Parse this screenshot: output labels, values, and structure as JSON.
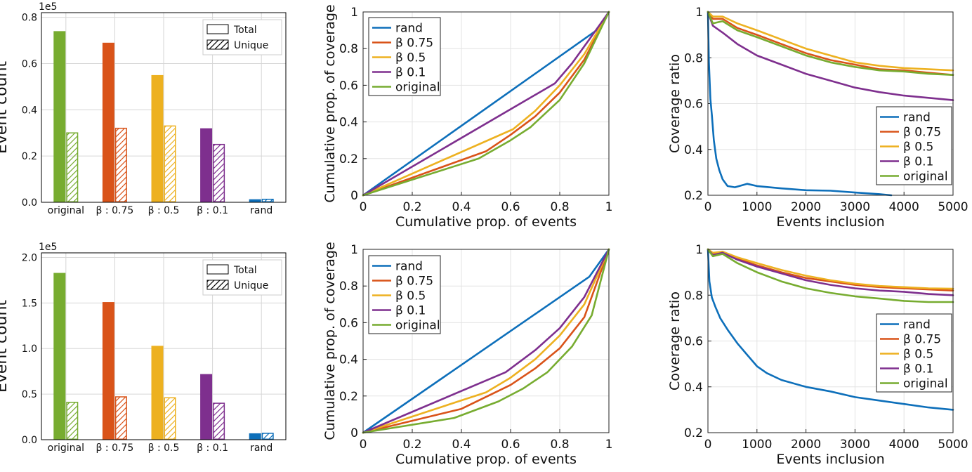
{
  "colors": {
    "rand": "#0d6fba",
    "beta075": "#d95319",
    "beta05": "#edb120",
    "beta01": "#7e2f8e",
    "original": "#77ac30"
  },
  "chart_data": [
    {
      "id": "bar_top",
      "type": "bar",
      "categories": [
        "original",
        "β : 0.75",
        "β : 0.5",
        "β : 0.1",
        "rand"
      ],
      "series": [
        {
          "name": "Total",
          "values": [
            0.74,
            0.69,
            0.55,
            0.32,
            0.013
          ]
        },
        {
          "name": "Unique",
          "values": [
            0.3,
            0.32,
            0.33,
            0.25,
            0.013
          ]
        }
      ],
      "bar_colors": [
        "#77ac30",
        "#d95319",
        "#edb120",
        "#7e2f8e",
        "#0d6fba"
      ],
      "ylabel": "Event count",
      "exponent_label": "1e5",
      "ylim": [
        0,
        0.82
      ],
      "yticks": [
        0.0,
        0.2,
        0.4,
        0.6,
        0.8
      ],
      "ytick_labels": [
        "0.0",
        "0.2",
        "0.4",
        "0.6",
        "0.8"
      ],
      "legend": [
        "Total",
        "Unique"
      ],
      "legend_position": "top-right",
      "grid": true
    },
    {
      "id": "lorenz_top",
      "type": "line",
      "xlabel": "Cumulative prop. of events",
      "ylabel": "Cumulative prop. of coverage",
      "xlim": [
        0,
        1
      ],
      "ylim": [
        0,
        1
      ],
      "xticks": [
        0,
        0.2,
        0.4,
        0.6,
        0.8,
        1
      ],
      "xtick_labels": [
        "0",
        "0.2",
        "0.4",
        "0.6",
        "0.8",
        "1"
      ],
      "yticks": [
        0,
        0.2,
        0.4,
        0.6,
        0.8,
        1
      ],
      "ytick_labels": [
        "0",
        "0.2",
        "0.4",
        "0.6",
        "0.8",
        "1"
      ],
      "legend_position": "top-left",
      "grid": true,
      "series": [
        {
          "name": "rand",
          "x": [
            0,
            0.95,
            1
          ],
          "y": [
            0,
            0.9,
            1
          ]
        },
        {
          "name": "β 0.75",
          "x": [
            0,
            0.5,
            0.6,
            0.7,
            0.8,
            0.9,
            1
          ],
          "y": [
            0,
            0.24,
            0.33,
            0.43,
            0.56,
            0.74,
            1
          ]
        },
        {
          "name": "β 0.5",
          "x": [
            0,
            0.61,
            0.7,
            0.8,
            0.9,
            1
          ],
          "y": [
            0,
            0.36,
            0.46,
            0.6,
            0.77,
            1
          ]
        },
        {
          "name": "β 0.1",
          "x": [
            0,
            0.78,
            0.85,
            0.92,
            1
          ],
          "y": [
            0,
            0.61,
            0.72,
            0.85,
            1
          ]
        },
        {
          "name": "original",
          "x": [
            0,
            0.47,
            0.6,
            0.68,
            0.8,
            0.9,
            1
          ],
          "y": [
            0,
            0.2,
            0.3,
            0.37,
            0.52,
            0.72,
            1
          ]
        }
      ]
    },
    {
      "id": "ratio_top",
      "type": "line",
      "xlabel": "Events inclusion",
      "ylabel": "Coverage ratio",
      "xlim": [
        0,
        5000
      ],
      "ylim": [
        0.2,
        1
      ],
      "xticks": [
        0,
        1000,
        2000,
        3000,
        4000,
        5000
      ],
      "xtick_labels": [
        "0",
        "1000",
        "2000",
        "3000",
        "4000",
        "5000"
      ],
      "yticks": [
        0.2,
        0.4,
        0.6,
        0.8,
        1
      ],
      "ytick_labels": [
        "0.2",
        "0.4",
        "0.6",
        "0.8",
        "1"
      ],
      "legend_position": "right",
      "grid": true,
      "series": [
        {
          "name": "rand",
          "x": [
            0,
            20,
            50,
            80,
            120,
            170,
            230,
            300,
            400,
            550,
            800,
            1000,
            1500,
            2000,
            2500,
            3000,
            3500,
            3740
          ],
          "y": [
            1.0,
            0.78,
            0.62,
            0.55,
            0.44,
            0.36,
            0.31,
            0.27,
            0.24,
            0.235,
            0.25,
            0.24,
            0.23,
            0.222,
            0.22,
            0.212,
            0.205,
            0.2
          ]
        },
        {
          "name": "β 0.75",
          "x": [
            0,
            100,
            300,
            600,
            1000,
            1500,
            2000,
            2500,
            3000,
            3500,
            4000,
            4500,
            5000
          ],
          "y": [
            1.0,
            0.97,
            0.97,
            0.93,
            0.9,
            0.86,
            0.82,
            0.79,
            0.77,
            0.75,
            0.745,
            0.735,
            0.725
          ]
        },
        {
          "name": "β 0.5",
          "x": [
            0,
            100,
            300,
            600,
            1000,
            1500,
            2000,
            2500,
            3000,
            3500,
            4000,
            4500,
            5000
          ],
          "y": [
            1.0,
            0.98,
            0.98,
            0.95,
            0.92,
            0.88,
            0.84,
            0.81,
            0.78,
            0.765,
            0.755,
            0.75,
            0.745
          ]
        },
        {
          "name": "β 0.1",
          "x": [
            0,
            100,
            300,
            600,
            1000,
            1500,
            2000,
            2500,
            3000,
            3500,
            4000,
            4500,
            5000
          ],
          "y": [
            1.0,
            0.94,
            0.91,
            0.86,
            0.81,
            0.77,
            0.73,
            0.7,
            0.67,
            0.65,
            0.635,
            0.625,
            0.615
          ]
        },
        {
          "name": "original",
          "x": [
            0,
            100,
            300,
            600,
            1000,
            1500,
            2000,
            2500,
            3000,
            3500,
            4000,
            4500,
            5000
          ],
          "y": [
            1.0,
            0.95,
            0.96,
            0.92,
            0.89,
            0.85,
            0.81,
            0.78,
            0.76,
            0.745,
            0.74,
            0.73,
            0.725
          ]
        }
      ]
    },
    {
      "id": "bar_bottom",
      "type": "bar",
      "categories": [
        "original",
        "β : 0.75",
        "β : 0.5",
        "β : 0.1",
        "rand"
      ],
      "series": [
        {
          "name": "Total",
          "values": [
            1.83,
            1.51,
            1.03,
            0.72,
            0.07
          ]
        },
        {
          "name": "Unique",
          "values": [
            0.41,
            0.47,
            0.46,
            0.4,
            0.07
          ]
        }
      ],
      "bar_colors": [
        "#77ac30",
        "#d95319",
        "#edb120",
        "#7e2f8e",
        "#0d6fba"
      ],
      "ylabel": "Event count",
      "exponent_label": "1e5",
      "ylim": [
        0,
        2.05
      ],
      "yticks": [
        0.0,
        0.5,
        1.0,
        1.5,
        2.0
      ],
      "ytick_labels": [
        "0.0",
        "0.5",
        "1.0",
        "1.5",
        "2.0"
      ],
      "legend": [
        "Total",
        "Unique"
      ],
      "legend_position": "top-right",
      "grid": true
    },
    {
      "id": "lorenz_bottom",
      "type": "line",
      "xlabel": "Cumulative prop. of events",
      "ylabel": "Cumulative prop. of coverage",
      "xlim": [
        0,
        1
      ],
      "ylim": [
        0,
        1
      ],
      "xticks": [
        0,
        0.2,
        0.4,
        0.6,
        0.8,
        1
      ],
      "xtick_labels": [
        "0",
        "0.2",
        "0.4",
        "0.6",
        "0.8",
        "1"
      ],
      "yticks": [
        0,
        0.2,
        0.4,
        0.6,
        0.8,
        1
      ],
      "ytick_labels": [
        "0",
        "0.2",
        "0.4",
        "0.6",
        "0.8",
        "1"
      ],
      "legend_position": "top-left",
      "grid": true,
      "series": [
        {
          "name": "rand",
          "x": [
            0,
            0.92,
            1
          ],
          "y": [
            0,
            0.85,
            1
          ]
        },
        {
          "name": "β 0.75",
          "x": [
            0,
            0.4,
            0.6,
            0.7,
            0.8,
            0.9,
            1
          ],
          "y": [
            0,
            0.13,
            0.26,
            0.35,
            0.46,
            0.63,
            1
          ]
        },
        {
          "name": "β 0.5",
          "x": [
            0,
            0.5,
            0.6,
            0.7,
            0.8,
            0.9,
            1
          ],
          "y": [
            0,
            0.22,
            0.3,
            0.4,
            0.53,
            0.7,
            1
          ]
        },
        {
          "name": "β 0.1",
          "x": [
            0,
            0.58,
            0.7,
            0.8,
            0.9,
            1
          ],
          "y": [
            0,
            0.33,
            0.45,
            0.57,
            0.74,
            1
          ]
        },
        {
          "name": "original",
          "x": [
            0,
            0.37,
            0.55,
            0.65,
            0.75,
            0.85,
            0.93,
            1
          ],
          "y": [
            0,
            0.08,
            0.17,
            0.24,
            0.33,
            0.47,
            0.64,
            1
          ]
        }
      ]
    },
    {
      "id": "ratio_bottom",
      "type": "line",
      "xlabel": "Events inclusion",
      "ylabel": "Coverage ratio",
      "xlim": [
        0,
        5000
      ],
      "ylim": [
        0.2,
        1
      ],
      "xticks": [
        0,
        1000,
        2000,
        3000,
        4000,
        5000
      ],
      "xtick_labels": [
        "0",
        "1000",
        "2000",
        "3000",
        "4000",
        "5000"
      ],
      "yticks": [
        0.2,
        0.4,
        0.6,
        0.8,
        1
      ],
      "ytick_labels": [
        "0.2",
        "0.4",
        "0.6",
        "0.8",
        "1"
      ],
      "legend_position": "right",
      "grid": true,
      "series": [
        {
          "name": "rand",
          "x": [
            0,
            30,
            80,
            150,
            250,
            400,
            600,
            800,
            1000,
            1200,
            1500,
            2000,
            2500,
            3000,
            3500,
            4000,
            4500,
            5000
          ],
          "y": [
            1.0,
            0.86,
            0.79,
            0.75,
            0.7,
            0.65,
            0.59,
            0.54,
            0.49,
            0.46,
            0.43,
            0.4,
            0.38,
            0.355,
            0.34,
            0.325,
            0.31,
            0.3
          ]
        },
        {
          "name": "β 0.75",
          "x": [
            0,
            100,
            300,
            600,
            1000,
            1500,
            2000,
            2500,
            3000,
            3500,
            4000,
            4500,
            5000
          ],
          "y": [
            1.0,
            0.98,
            0.99,
            0.96,
            0.93,
            0.9,
            0.875,
            0.86,
            0.845,
            0.835,
            0.83,
            0.825,
            0.82
          ]
        },
        {
          "name": "β 0.5",
          "x": [
            0,
            100,
            300,
            600,
            1000,
            1500,
            2000,
            2500,
            3000,
            3500,
            4000,
            4500,
            5000
          ],
          "y": [
            1.0,
            0.985,
            0.99,
            0.965,
            0.94,
            0.91,
            0.885,
            0.865,
            0.85,
            0.84,
            0.835,
            0.83,
            0.828
          ]
        },
        {
          "name": "β 0.1",
          "x": [
            0,
            100,
            300,
            600,
            1000,
            1500,
            2000,
            2500,
            3000,
            3500,
            4000,
            4500,
            5000
          ],
          "y": [
            1.0,
            0.975,
            0.985,
            0.955,
            0.925,
            0.895,
            0.865,
            0.845,
            0.83,
            0.82,
            0.815,
            0.805,
            0.8
          ]
        },
        {
          "name": "original",
          "x": [
            0,
            100,
            300,
            600,
            1000,
            1500,
            2000,
            2500,
            3000,
            3500,
            4000,
            4500,
            5000
          ],
          "y": [
            1.0,
            0.97,
            0.98,
            0.94,
            0.9,
            0.86,
            0.83,
            0.81,
            0.795,
            0.785,
            0.775,
            0.77,
            0.77
          ]
        }
      ]
    }
  ]
}
